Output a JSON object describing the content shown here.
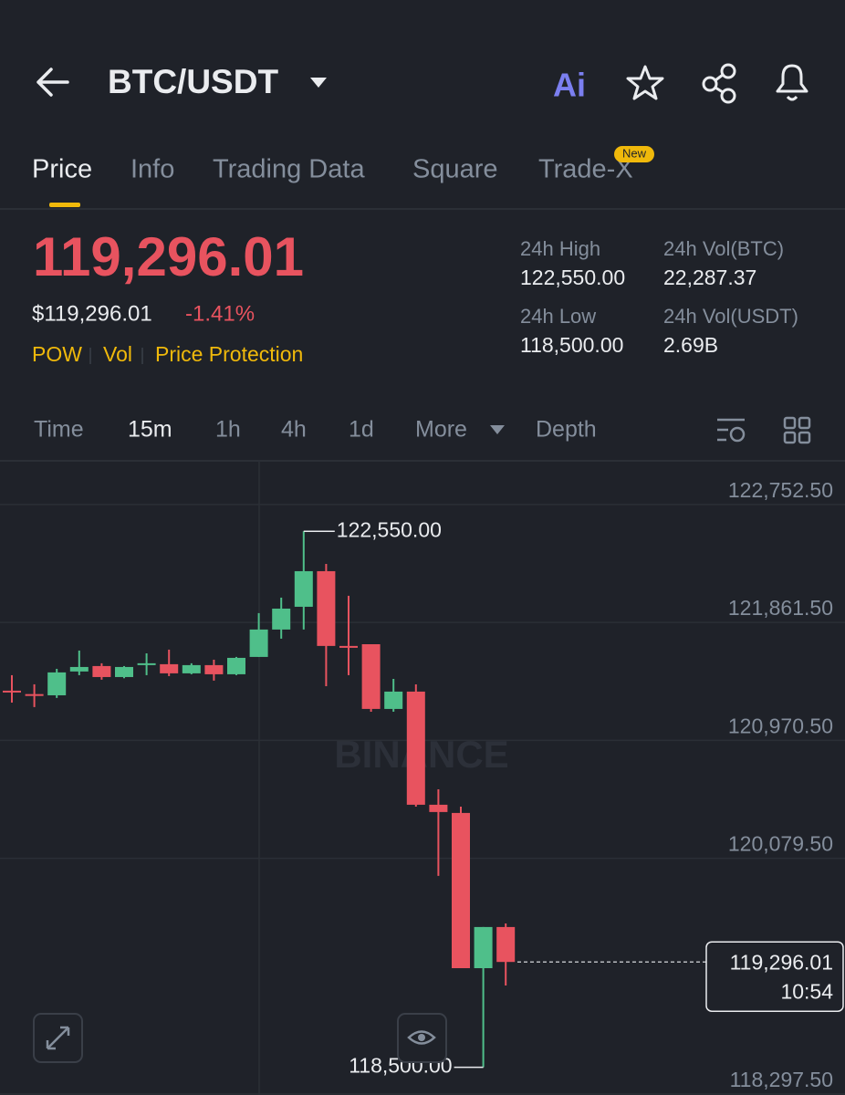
{
  "header": {
    "title": "BTC/USDT",
    "ai": "Ai"
  },
  "tabs": [
    "Price",
    "Info",
    "Trading Data",
    "Square",
    "Trade-X"
  ],
  "tab_badge": "New",
  "price": {
    "last": "119,296.01",
    "usd": "$119,296.01",
    "change": "-1.41%",
    "tags": [
      "POW",
      "Vol",
      "Price Protection"
    ]
  },
  "stats": [
    {
      "label": "24h High",
      "value": "122,550.00"
    },
    {
      "label": "24h Vol(BTC)",
      "value": "22,287.37"
    },
    {
      "label": "24h Low",
      "value": "118,500.00"
    },
    {
      "label": "24h Vol(USDT)",
      "value": "2.69B"
    }
  ],
  "intervals": [
    "Time",
    "15m",
    "1h",
    "4h",
    "1d",
    "More",
    "Depth"
  ],
  "chart_data": {
    "type": "candlestick",
    "watermark": "BINANCE",
    "open": [
      121346,
      121320,
      121311,
      121491,
      121532,
      121449,
      121546,
      121546,
      121477,
      121539,
      121470,
      121601,
      121808,
      121980,
      122249,
      121684,
      121697,
      121208,
      121339,
      120484,
      120422,
      119249,
      119560
    ],
    "high": [
      121463,
      121394,
      121511,
      121649,
      121553,
      121532,
      121628,
      121656,
      121553,
      121580,
      121601,
      121932,
      122049,
      122550,
      122304,
      122063,
      121697,
      121435,
      121394,
      120601,
      120470,
      119560,
      119587
    ],
    "low": [
      121256,
      121222,
      121291,
      121463,
      121429,
      121440,
      121463,
      121456,
      121470,
      121422,
      121463,
      121601,
      121739,
      121808,
      121380,
      121463,
      121187,
      121187,
      120470,
      119946,
      119249,
      118500,
      119118
    ],
    "close": [
      121340,
      121311,
      121484,
      121525,
      121449,
      121525,
      121553,
      121477,
      121539,
      121470,
      121594,
      121808,
      121966,
      122249,
      121684,
      121670,
      121208,
      121339,
      120484,
      120429,
      119249,
      119560,
      119296.01
    ],
    "up_color": "#4fbf8a",
    "down_color": "#e8535f",
    "ylim": [
      118297.5,
      123083
    ],
    "yticks": [
      {
        "value": 122752.5,
        "label": "122,752.50"
      },
      {
        "value": 121861.5,
        "label": "121,861.50"
      },
      {
        "value": 120970.5,
        "label": "120,970.50"
      },
      {
        "value": 120079.5,
        "label": "120,079.50"
      },
      {
        "value": 118297.5,
        "label": "118,297.50"
      }
    ],
    "high_annotation": {
      "value": 122550,
      "label": "122,550.00"
    },
    "low_annotation": {
      "value": 118500,
      "label": "118,500.00"
    },
    "last_price": {
      "value": 119296.01,
      "label": "119,296.01"
    },
    "countdown": "10:54"
  }
}
